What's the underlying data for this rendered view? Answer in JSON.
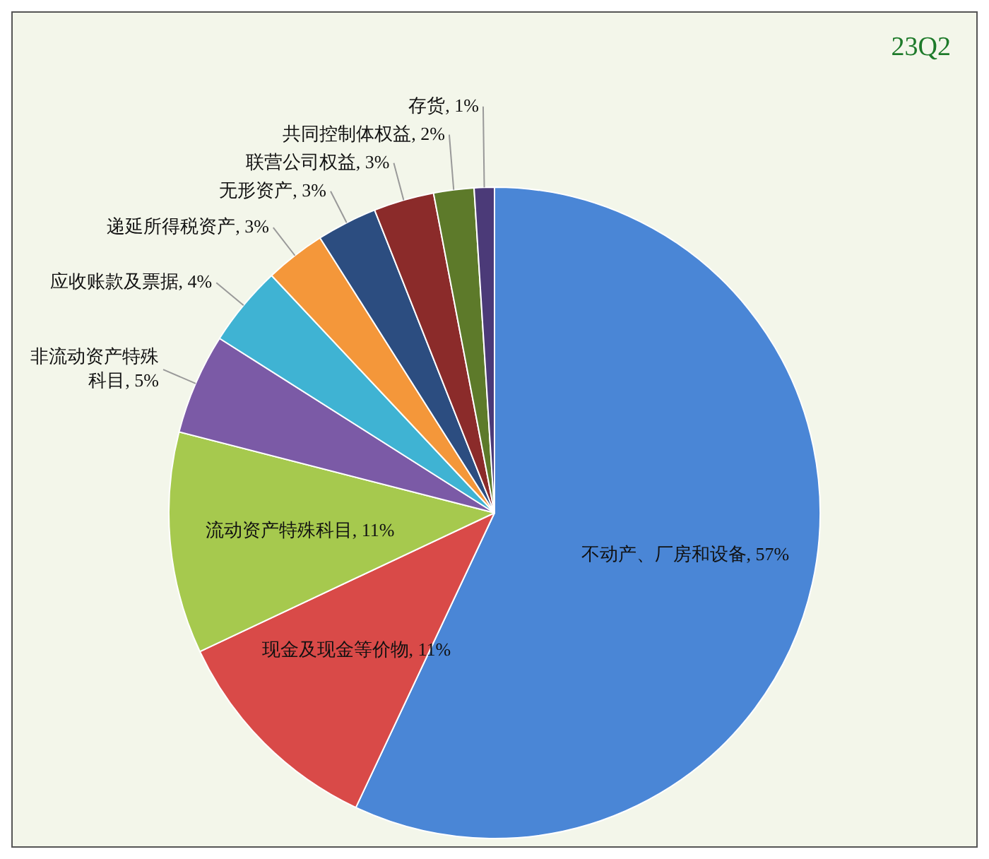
{
  "chart_data": {
    "type": "pie",
    "title": "23Q2",
    "categories": [
      "不动产、厂房和设备",
      "现金及现金等价物",
      "流动资产特殊科目",
      "非流动资产特殊科目",
      "应收账款及票据",
      "递延所得税资产",
      "无形资产",
      "联营公司权益",
      "共同控制体权益",
      "存货"
    ],
    "values": [
      57,
      11,
      11,
      5,
      4,
      3,
      3,
      3,
      2,
      1
    ],
    "value_labels": [
      "57%",
      "11%",
      "11%",
      "5%",
      "4%",
      "3%",
      "3%",
      "3%",
      "2%",
      "1%"
    ],
    "colors": [
      "#4a86d6",
      "#d94a48",
      "#a6c94e",
      "#7b5aa6",
      "#3fb3d3",
      "#f4973a",
      "#2c4d80",
      "#8b2b2a",
      "#5d7a2a",
      "#4b3a78"
    ],
    "legend": false
  }
}
